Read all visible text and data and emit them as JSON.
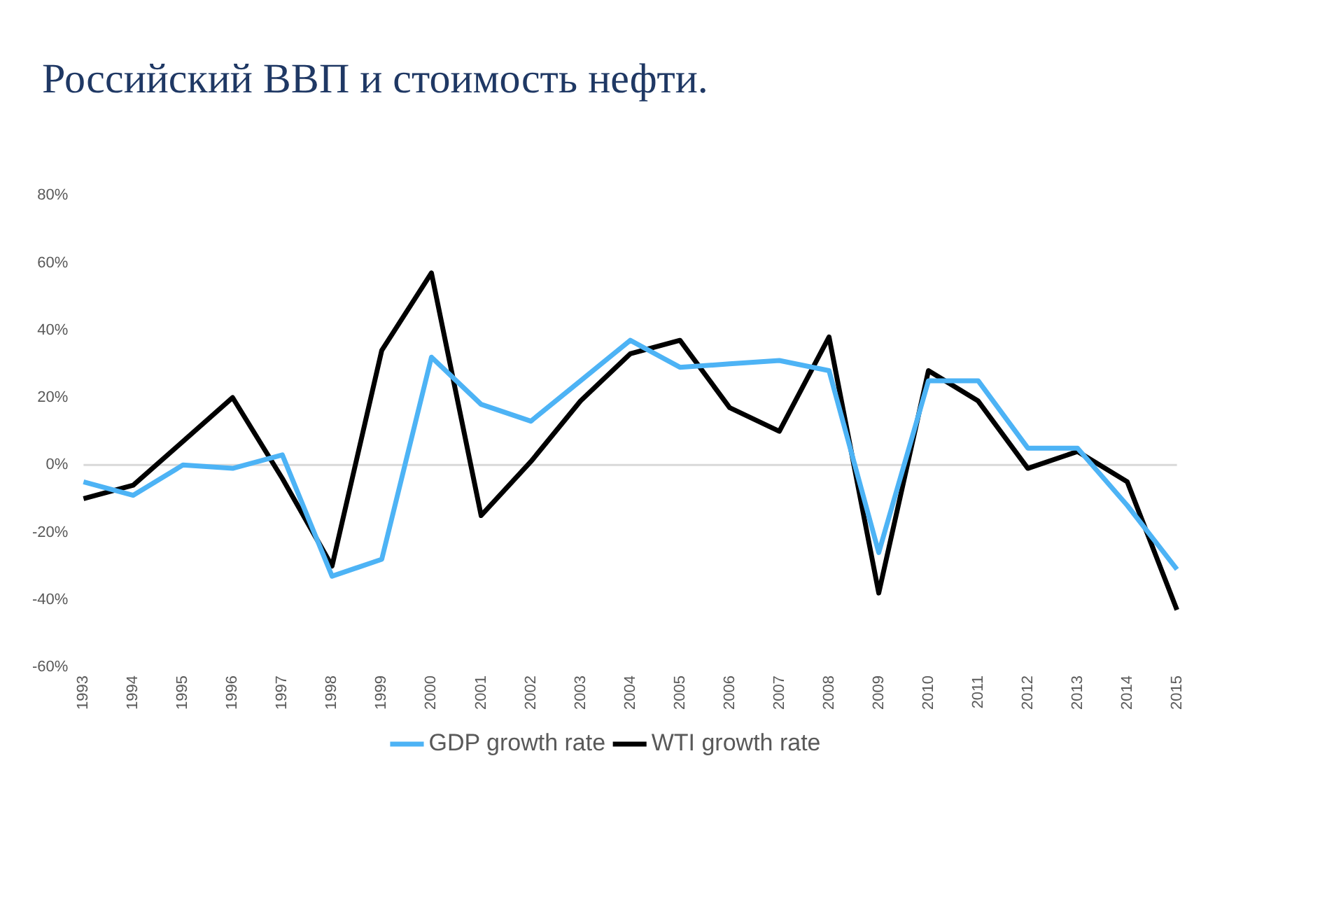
{
  "chart_data": {
    "type": "line",
    "title": "Российский ВВП и стоимость нефти.",
    "categories": [
      "1993",
      "1994",
      "1995",
      "1996",
      "1997",
      "1998",
      "1999",
      "2000",
      "2001",
      "2002",
      "2003",
      "2004",
      "2005",
      "2006",
      "2007",
      "2008",
      "2009",
      "2010",
      "2011",
      "2012",
      "2013",
      "2014",
      "2015"
    ],
    "series": [
      {
        "name": "GDP growth rate",
        "color": "#4db3f5",
        "values": [
          -5,
          -9,
          0,
          -1,
          3,
          -33,
          -28,
          32,
          18,
          13,
          25,
          37,
          29,
          30,
          31,
          28,
          -26,
          25,
          25,
          5,
          5,
          -12,
          -31
        ]
      },
      {
        "name": "WTI growth rate",
        "color": "#000000",
        "values": [
          -10,
          -6,
          7,
          20,
          -4,
          -30,
          34,
          57,
          -15,
          1,
          19,
          33,
          37,
          17,
          10,
          38,
          -38,
          28,
          19,
          -1,
          4,
          -5,
          -43
        ]
      }
    ],
    "ylim": [
      -60,
      80
    ],
    "yticks": [
      {
        "value": -60,
        "label": "-60%"
      },
      {
        "value": -40,
        "label": "-40%"
      },
      {
        "value": -20,
        "label": "-20%"
      },
      {
        "value": 0,
        "label": "0%"
      },
      {
        "value": 20,
        "label": "20%"
      },
      {
        "value": 40,
        "label": "40%"
      },
      {
        "value": 60,
        "label": "60%"
      },
      {
        "value": 80,
        "label": "80%"
      }
    ],
    "ref_lines": [
      {
        "axis": "y",
        "value": 0,
        "color": "#d9d9d9"
      }
    ],
    "grid": false,
    "legend": "bottom",
    "marker": "none",
    "line_style": "solid"
  }
}
